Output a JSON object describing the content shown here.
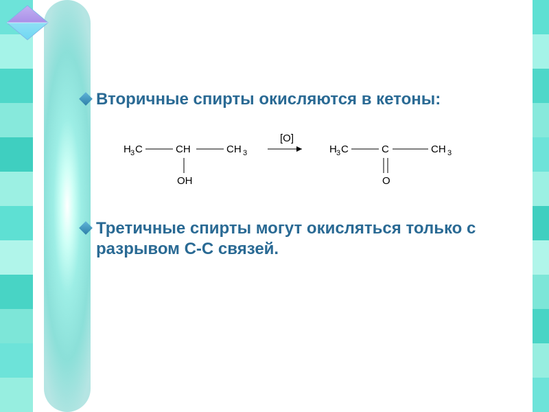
{
  "leftStripColors": [
    "#6de3d9",
    "#a5f3e8",
    "#4ed7c9",
    "#87e9dc",
    "#3fcfc0",
    "#9cf0e3",
    "#5ee0d3",
    "#b0f5ea",
    "#48d4c5",
    "#7de6d8",
    "#6de3d9",
    "#97eee0"
  ],
  "rightStripColors": [
    "#5ee0d3",
    "#a5f3e8",
    "#4ed7c9",
    "#87e9dc",
    "#6de3d9",
    "#9cf0e3",
    "#3fcfc0",
    "#b0f5ea",
    "#7de6d8",
    "#48d4c5",
    "#97eee0",
    "#6de3d9"
  ],
  "cornerShape": {
    "fillTop": "#a98fe8",
    "fillBottom": "#6fd7f2",
    "stroke": "#7fb8e6"
  },
  "text": {
    "bullet1": "Вторичные спирты окисляются в кетоны:",
    "bullet2": "Третичные спирты могут окисляться только с разрывом С-С связей.",
    "color": "#2a6a94",
    "fontSize": 24,
    "diamondColorStart": "#5fb5d9",
    "diamondColorEnd": "#2e7fa8"
  },
  "reaction": {
    "reagent": "[O]",
    "left": {
      "l_ch3": "H₃C",
      "ch": "CH",
      "r_ch3": "CH₃",
      "oh": "OH"
    },
    "right": {
      "l_ch3": "H₃C",
      "c": "C",
      "r_ch3": "CH₃",
      "o": "O"
    },
    "lineColor": "#000000"
  }
}
